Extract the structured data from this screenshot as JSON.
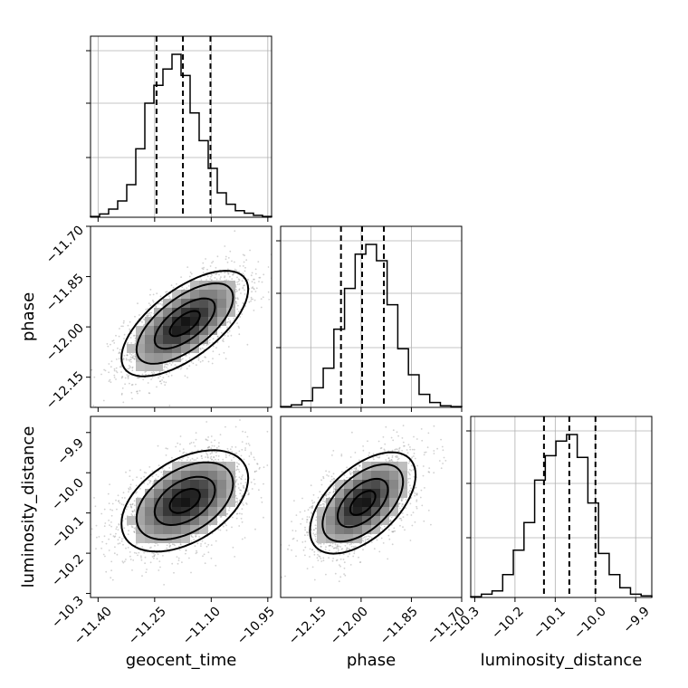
{
  "chart_data": {
    "type": "corner",
    "parameters": [
      "geocent_time",
      "phase",
      "luminosity_distance"
    ],
    "ticks": {
      "geocent_time": [
        "−11.40",
        "−11.25",
        "−11.10",
        "−10.95"
      ],
      "phase": [
        "−12.15",
        "−12.00",
        "−11.85",
        "−11.70"
      ],
      "luminosity_distance": [
        "−10.3",
        "−10.2",
        "−10.1",
        "−10.0",
        "−9.9"
      ]
    },
    "ranges": {
      "geocent_time": [
        -11.42,
        -10.94
      ],
      "phase": [
        -12.24,
        -11.7
      ],
      "luminosity_distance": [
        -10.31,
        -9.86
      ]
    },
    "histograms": [
      {
        "parameter": "geocent_time",
        "bins_lo": -11.42,
        "bins_hi": -10.94,
        "counts": [
          0.005,
          0.02,
          0.05,
          0.1,
          0.2,
          0.42,
          0.7,
          0.81,
          0.91,
          1.0,
          0.87,
          0.64,
          0.47,
          0.3,
          0.15,
          0.08,
          0.04,
          0.025,
          0.012,
          0.005
        ],
        "quantiles": [
          -11.245,
          -11.175,
          -11.102
        ]
      },
      {
        "parameter": "phase",
        "bins_lo": -12.24,
        "bins_hi": -11.7,
        "counts": [
          0.005,
          0.015,
          0.04,
          0.12,
          0.24,
          0.48,
          0.73,
          0.94,
          1.0,
          0.9,
          0.63,
          0.36,
          0.2,
          0.08,
          0.03,
          0.01,
          0.005
        ],
        "quantiles": [
          -12.06,
          -11.997,
          -11.932
        ]
      },
      {
        "parameter": "luminosity_distance",
        "bins_lo": -10.31,
        "bins_hi": -9.86,
        "counts": [
          0.005,
          0.02,
          0.04,
          0.14,
          0.29,
          0.46,
          0.72,
          0.87,
          0.96,
          1.0,
          0.86,
          0.58,
          0.27,
          0.14,
          0.06,
          0.02,
          0.01
        ],
        "quantiles": [
          -10.128,
          -10.065,
          -10.0
        ]
      }
    ],
    "pairs": [
      {
        "x": "geocent_time",
        "y": "phase",
        "mean": [
          -11.17,
          -11.99
        ],
        "sd": [
          0.08,
          0.075
        ],
        "corr": 0.65
      },
      {
        "x": "geocent_time",
        "y": "luminosity_distance",
        "mean": [
          -11.17,
          -10.07
        ],
        "sd": [
          0.08,
          0.06
        ],
        "corr": 0.45
      },
      {
        "x": "phase",
        "y": "luminosity_distance",
        "mean": [
          -11.995,
          -10.075
        ],
        "sd": [
          0.075,
          0.06
        ],
        "corr": 0.55
      }
    ],
    "grid": true
  }
}
